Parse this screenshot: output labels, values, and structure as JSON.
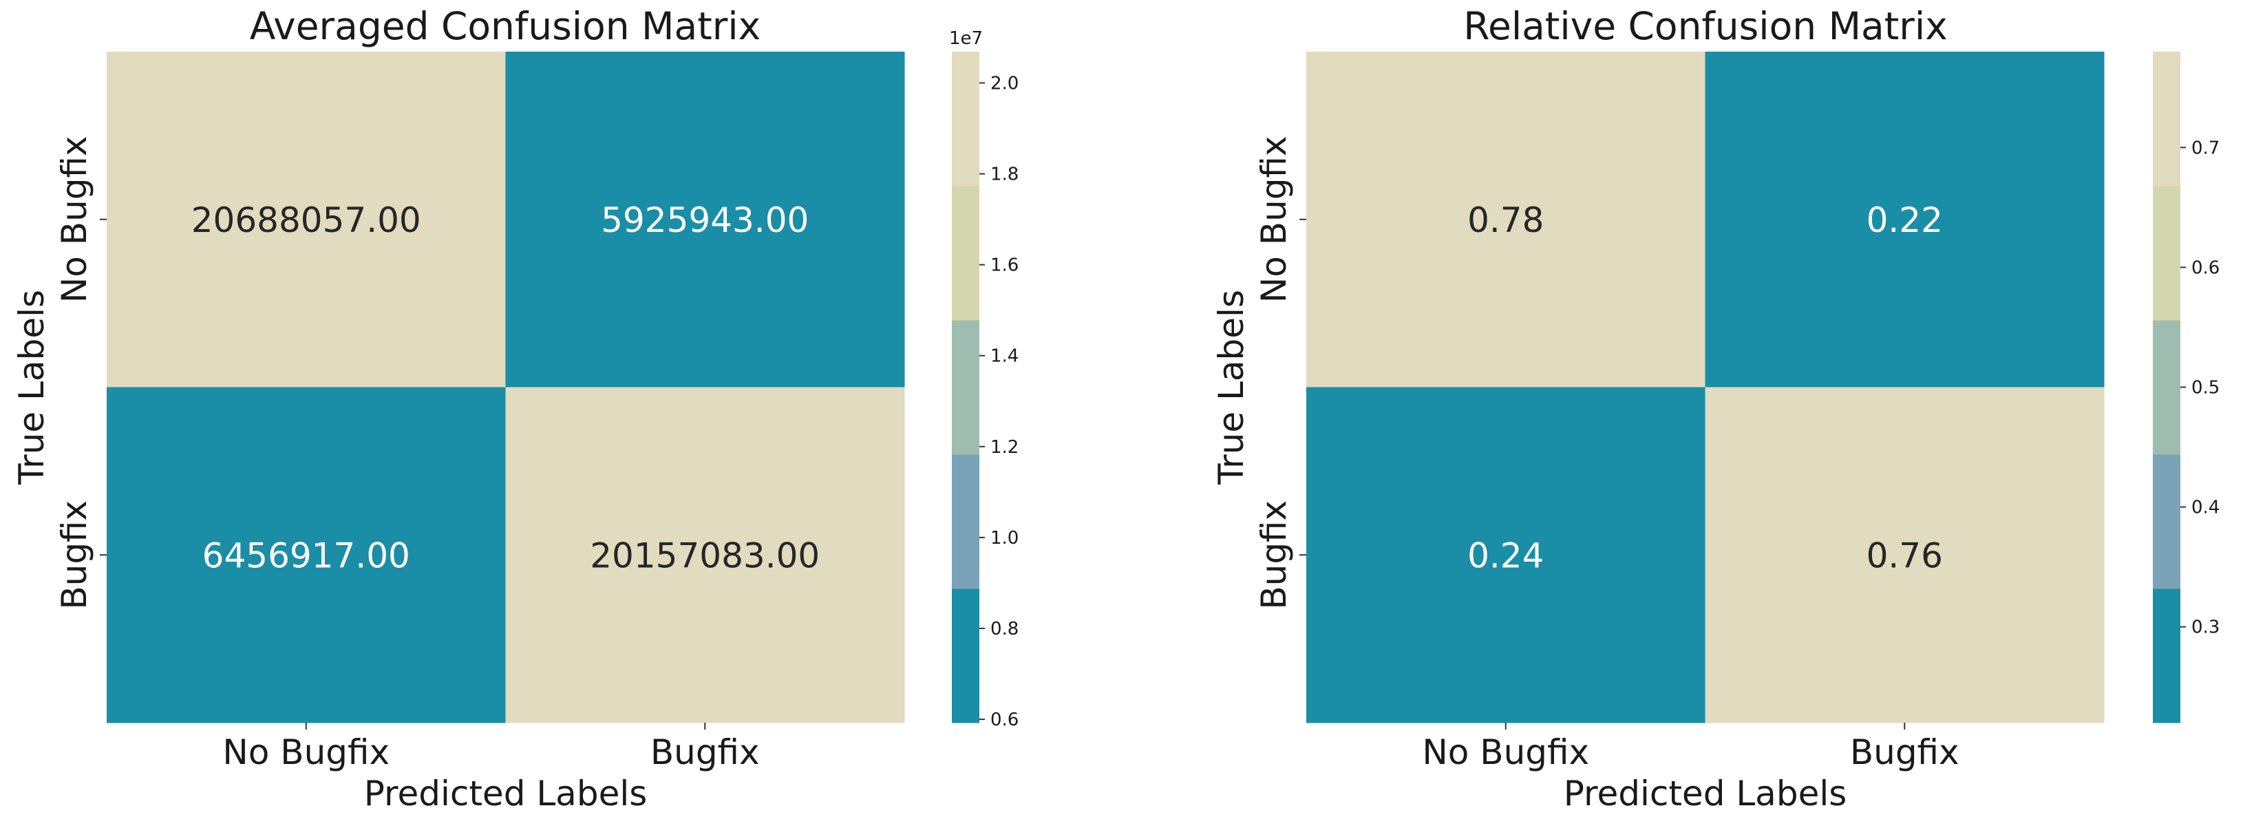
{
  "chart_data": [
    {
      "type": "heatmap",
      "title": "Averaged Confusion Matrix",
      "xlabel": "Predicted Labels",
      "ylabel": "True Labels",
      "x_categories": [
        "No Bugfix",
        "Bugfix"
      ],
      "y_categories": [
        "No Bugfix",
        "Bugfix"
      ],
      "values": [
        [
          20688057.0,
          5925943.0
        ],
        [
          6456917.0,
          20157083.0
        ]
      ],
      "cell_labels": [
        [
          "20688057.00",
          "5925943.00"
        ],
        [
          "6456917.00",
          "20157083.00"
        ]
      ],
      "colorbar": {
        "range": [
          5925943,
          20688057
        ],
        "ticks": [
          0.6,
          0.8,
          1.0,
          1.2,
          1.4,
          1.6,
          1.8,
          2.0
        ],
        "tick_labels": [
          "0.6",
          "0.8",
          "1.0",
          "1.2",
          "1.4",
          "1.6",
          "1.8",
          "2.0"
        ],
        "multiplier_label": "1e7",
        "tick_scale": 10000000
      }
    },
    {
      "type": "heatmap",
      "title": "Relative Confusion Matrix",
      "xlabel": "Predicted Labels",
      "ylabel": "True Labels",
      "x_categories": [
        "No Bugfix",
        "Bugfix"
      ],
      "y_categories": [
        "No Bugfix",
        "Bugfix"
      ],
      "values": [
        [
          0.78,
          0.22
        ],
        [
          0.24,
          0.76
        ]
      ],
      "cell_labels": [
        [
          "0.78",
          "0.22"
        ],
        [
          "0.24",
          "0.76"
        ]
      ],
      "colorbar": {
        "range": [
          0.22,
          0.78
        ],
        "ticks": [
          0.3,
          0.4,
          0.5,
          0.6,
          0.7
        ],
        "tick_labels": [
          "0.3",
          "0.4",
          "0.5",
          "0.6",
          "0.7"
        ],
        "multiplier_label": "",
        "tick_scale": 1
      }
    }
  ],
  "colormap": [
    "#1a8ea6",
    "#7aa3b8",
    "#9ebdb0",
    "#d4d7ae",
    "#e1dbbf"
  ],
  "text_colors": {
    "on_light": "#262626",
    "on_dark": "#ffffff"
  }
}
